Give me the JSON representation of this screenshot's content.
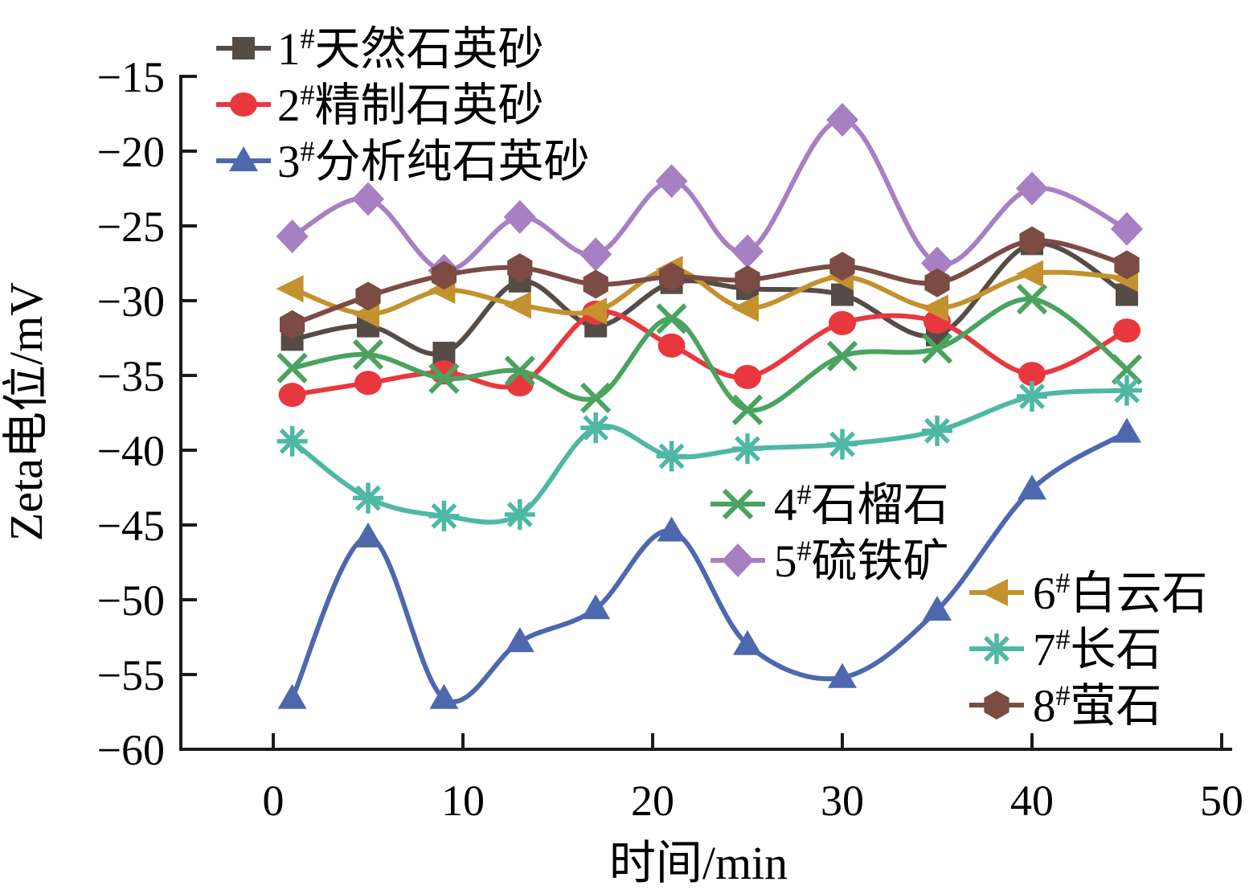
{
  "chart_data": {
    "type": "line",
    "x": [
      1,
      5,
      9,
      13,
      17,
      21,
      25,
      30,
      35,
      40,
      45
    ],
    "xlabel": "时间/min",
    "ylabel": "Zeta电位/mV",
    "xlim": [
      0,
      50
    ],
    "ylim": [
      -60,
      -15
    ],
    "x_ticks": [
      0,
      10,
      20,
      30,
      40,
      50
    ],
    "x_tick_labels": [
      "0",
      "10",
      "20",
      "30",
      "40",
      "50"
    ],
    "y_ticks": [
      -15,
      -20,
      -25,
      -30,
      -35,
      -40,
      -45,
      -50,
      -55,
      -60
    ],
    "y_tick_labels": [
      "−15",
      "−20",
      "−25",
      "−30",
      "−35",
      "−40",
      "−45",
      "−50",
      "−55",
      "−60"
    ],
    "grid": false,
    "series": [
      {
        "num": "1",
        "sup": "#",
        "name": "天然石英砂",
        "marker": "square",
        "color": "#554c48",
        "values": [
          -32.6,
          -31.7,
          -33.5,
          -28.7,
          -31.7,
          -28.8,
          -29.2,
          -29.6,
          -32.3,
          -26.2,
          -29.6
        ]
      },
      {
        "num": "2",
        "sup": "#",
        "name": "精制石英砂",
        "marker": "circle",
        "color": "#e8383e",
        "values": [
          -36.3,
          -35.5,
          -34.8,
          -35.6,
          -30.8,
          -33.0,
          -35.1,
          -31.5,
          -31.4,
          -34.9,
          -32.0
        ]
      },
      {
        "num": "3",
        "sup": "#",
        "name": "分析纯石英砂",
        "marker": "triangle-up",
        "color": "#4d68ad",
        "values": [
          -56.6,
          -45.8,
          -56.6,
          -52.8,
          -50.6,
          -45.4,
          -53.0,
          -55.2,
          -50.7,
          -42.6,
          -38.8
        ]
      },
      {
        "num": "4",
        "sup": "#",
        "name": "石榴石",
        "marker": "x",
        "color": "#4aa35e",
        "values": [
          -34.5,
          -33.6,
          -35.2,
          -34.7,
          -36.5,
          -31.2,
          -37.3,
          -33.7,
          -33.2,
          -29.9,
          -34.6
        ]
      },
      {
        "num": "5",
        "sup": "#",
        "name": "硫铁矿",
        "marker": "diamond",
        "color": "#a780c3",
        "values": [
          -25.7,
          -23.2,
          -28.0,
          -24.4,
          -26.9,
          -22.0,
          -26.7,
          -17.9,
          -27.5,
          -22.5,
          -25.2
        ]
      },
      {
        "num": "6",
        "sup": "#",
        "name": "白云石",
        "marker": "triangle-left",
        "color": "#c3922e",
        "values": [
          -29.2,
          -30.9,
          -29.3,
          -30.3,
          -30.7,
          -27.9,
          -30.5,
          -28.4,
          -30.5,
          -28.2,
          -28.5
        ]
      },
      {
        "num": "7",
        "sup": "#",
        "name": "长石",
        "marker": "asterisk",
        "color": "#4fb8a5",
        "values": [
          -39.4,
          -43.2,
          -44.4,
          -44.3,
          -38.5,
          -40.4,
          -39.9,
          -39.6,
          -38.7,
          -36.4,
          -36.0
        ]
      },
      {
        "num": "8",
        "sup": "#",
        "name": "萤石",
        "marker": "hexagon",
        "color": "#7b4b44",
        "values": [
          -31.6,
          -29.7,
          -28.3,
          -27.8,
          -28.9,
          -28.4,
          -28.6,
          -27.7,
          -28.8,
          -26.0,
          -27.6
        ]
      }
    ],
    "legend": {
      "position": "inside-plot, three groups: top-left, middle, lower-right",
      "groups": [
        {
          "items": [
            0,
            1,
            2
          ]
        },
        {
          "items": [
            3,
            4
          ]
        },
        {
          "items": [
            5,
            6,
            7
          ]
        }
      ]
    },
    "axis_color": "#1b1b1b"
  }
}
